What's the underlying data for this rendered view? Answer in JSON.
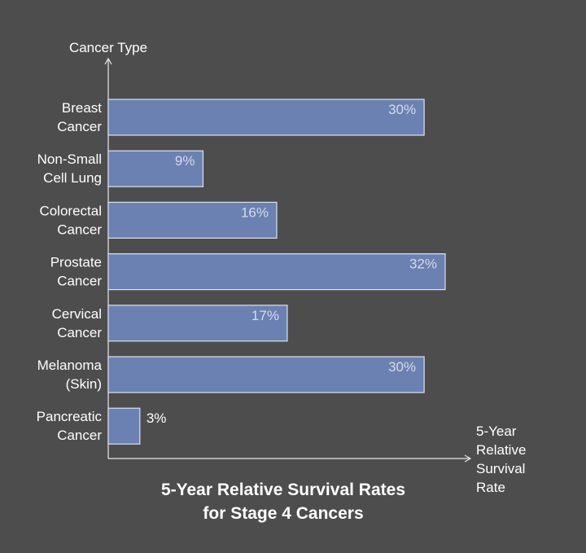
{
  "chart_data": {
    "type": "bar",
    "orientation": "horizontal",
    "title_lines": [
      "5-Year Relative Survival Rates",
      "for Stage 4 Cancers"
    ],
    "ylabel": "Cancer Type",
    "xlabel_lines": [
      "5-Year",
      "Relative",
      "Survival",
      "Rate"
    ],
    "categories": [
      {
        "lines": [
          "Breast",
          "Cancer"
        ]
      },
      {
        "lines": [
          "Non-Small",
          "Cell Lung"
        ]
      },
      {
        "lines": [
          "Colorectal",
          "Cancer"
        ]
      },
      {
        "lines": [
          "Prostate",
          "Cancer"
        ]
      },
      {
        "lines": [
          "Cervical",
          "Cancer"
        ]
      },
      {
        "lines": [
          "Melanoma",
          "(Skin)"
        ]
      },
      {
        "lines": [
          "Pancreatic",
          "Cancer"
        ]
      }
    ],
    "values": [
      30,
      9,
      16,
      32,
      17,
      30,
      3
    ],
    "value_labels": [
      "30%",
      "9%",
      "16%",
      "32%",
      "17%",
      "30%",
      "3%"
    ],
    "xlim": [
      0,
      32
    ],
    "grid": false,
    "colors": {
      "background": "#4d4d4d",
      "bar_fill": "#6a81b2",
      "bar_stroke": "#dbe2ee",
      "value_label_inside": "#d6dbe6",
      "value_label_outside": "#ffffff",
      "axis": "#e8e8e8"
    }
  }
}
